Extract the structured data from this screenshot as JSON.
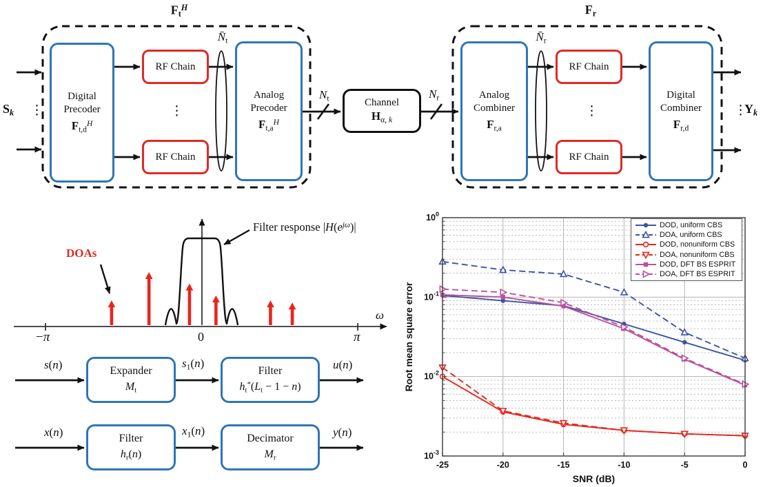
{
  "colors": {
    "box_blue": "#2e75b6",
    "box_red": "#de2a25",
    "diagram_black": "#111111",
    "impulse_red": "#e8251d",
    "chart_blue": "#3a53a4",
    "chart_red": "#e8251d",
    "chart_magenta": "#b9519f",
    "grid_gray": "#b3b3b3"
  },
  "beamforming_diagram": {
    "tx_title": "<b>F</b><sub>t</sub><sup><i>H</i></sup>",
    "rx_title": "<b>F</b><sub>r</sub>",
    "input_symbol": "<b>S</b><sub><i>k</i></sub>",
    "output_symbol": "<b>Y</b><sub><i>k</i></sub>",
    "vdots": "⋮",
    "digital_precoder": {
      "l1": "Digital",
      "l2": "Precoder",
      "sym": "<b>F</b><sub>t,d</sub><sup><i>H</i></sup>"
    },
    "analog_precoder": {
      "l1": "Analog",
      "l2": "Precoder",
      "sym": "<b>F</b><sub>t,a</sub><sup><i>H</i></sup>"
    },
    "analog_combiner": {
      "l1": "Analog",
      "l2": "Combiner",
      "sym": "<b>F</b><sub>r,a</sub>"
    },
    "digital_combiner": {
      "l1": "Digital",
      "l2": "Combiner",
      "sym": "<b>F</b><sub>r,d</sub>"
    },
    "rf_chain_label": "RF Chain",
    "nt_bar": "<i>N̄</i><sub>t</sub>",
    "nr_bar": "<i>N̄</i><sub>r</sub>",
    "nt": "<i>N</i><sub>t</sub>",
    "nr": "<i>N</i><sub>r</sub>",
    "channel": {
      "l1": "Channel",
      "sym": "<b>H</b><sub>α, <i>k</i></sub>"
    }
  },
  "filter_plot": {
    "doas_label": "DOAs",
    "response_label": "Filter response |<i>H</i>(<i>e</i><sup><i>jω</i></sup>)|",
    "omega_label": "<i>ω</i>",
    "tick_neg_pi": "−<i>π</i>",
    "tick_zero": "0",
    "tick_pi": "<i>π</i>",
    "impulses": [
      {
        "omega_over_pi": -0.58,
        "amplitude": 0.48
      },
      {
        "omega_over_pi": -0.34,
        "amplitude": 1.0
      },
      {
        "omega_over_pi": -0.08,
        "amplitude": 0.79
      },
      {
        "omega_over_pi": 0.09,
        "amplitude": 0.57
      },
      {
        "omega_over_pi": 0.44,
        "amplitude": 0.48
      },
      {
        "omega_over_pi": 0.58,
        "amplitude": 0.44
      }
    ]
  },
  "resampler_diagrams": {
    "rows": [
      {
        "input": "<i>s</i>(<i>n</i>)",
        "box1_l1": "Expander",
        "box1_sym": "<i>M</i><sub>t</sub>",
        "mid": "<i>s</i><sub>1</sub>(<i>n</i>)",
        "box2_l1": "Filter",
        "box2_sym": "<i>h</i><sub>t</sub><sup>*</sup>(<i>L</i><sub>t</sub> − 1 − <i>n</i>)",
        "output": "<i>u</i>(<i>n</i>)"
      },
      {
        "input": "<i>x</i>(<i>n</i>)",
        "box1_l1": "Filter",
        "box1_sym": "<i>h</i><sub>r</sub>(<i>n</i>)",
        "mid": "<i>x</i><sub>1</sub>(<i>n</i>)",
        "box2_l1": "Decimator",
        "box2_sym": "<i>M</i><sub>r</sub>",
        "output": "<i>y</i>(<i>n</i>)"
      }
    ]
  },
  "chart_data": {
    "type": "line",
    "title": "",
    "xlabel": "SNR (dB)",
    "ylabel": "Root mean square error",
    "x": [
      -25,
      -20,
      -15,
      -10,
      -5,
      0
    ],
    "x_ticks": [
      "-25",
      "-20",
      "-15",
      "-10",
      "-5",
      "0"
    ],
    "y_scale": "log",
    "ylim": [
      0.001,
      1
    ],
    "y_tick_exponents": [
      0,
      -1,
      -2,
      -3
    ],
    "grid": true,
    "legend_position": "top-right",
    "series": [
      {
        "name": "DOD, uniform CBS",
        "color": "#3a53a4",
        "line": "solid",
        "marker": "circle-filled",
        "values": [
          0.105,
          0.09,
          0.078,
          0.046,
          0.027,
          0.016
        ]
      },
      {
        "name": "DOA, uniform CBS",
        "color": "#3a53a4",
        "line": "dashed",
        "marker": "triangle-up-open",
        "values": [
          0.28,
          0.22,
          0.195,
          0.115,
          0.036,
          0.017
        ]
      },
      {
        "name": "DOD, nonuniform CBS",
        "color": "#e8251d",
        "line": "solid",
        "marker": "circle-open",
        "values": [
          0.01,
          0.0036,
          0.0025,
          0.0021,
          0.0019,
          0.0018
        ]
      },
      {
        "name": "DOA, nonuniform CBS",
        "color": "#e8251d",
        "line": "dashed",
        "marker": "triangle-down-open",
        "values": [
          0.013,
          0.0037,
          0.0026,
          0.0021,
          0.0019,
          0.0018
        ]
      },
      {
        "name": "DOD, DFT BS ESPRIT",
        "color": "#b9519f",
        "line": "solid",
        "marker": "square-filled",
        "values": [
          0.107,
          0.1,
          0.077,
          0.04,
          0.0165,
          0.0078
        ]
      },
      {
        "name": "DOA, DFT BS ESPRIT",
        "color": "#b9519f",
        "line": "dashed",
        "marker": "triangle-right-open",
        "values": [
          0.126,
          0.115,
          0.085,
          0.042,
          0.017,
          0.008
        ]
      }
    ]
  }
}
